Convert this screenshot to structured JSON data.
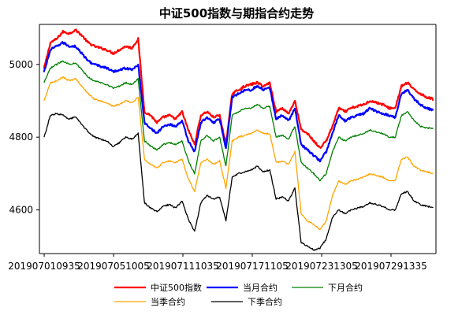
{
  "chart_data": {
    "type": "line",
    "title": "中证500指数与期指合约走势",
    "xlabel": "",
    "ylabel": "",
    "ylim": [
      4480,
      5110
    ],
    "grid": false,
    "legend_position": "bottom",
    "x_tick_labels": [
      "201907010935",
      "201907051005",
      "201907111035",
      "201907171105",
      "201907231305",
      "201907291335"
    ],
    "y_ticks": [
      4600,
      4800,
      5000
    ],
    "series": [
      {
        "name": "中证500指数",
        "color": "#ff0000",
        "values": [
          4990,
          5060,
          5070,
          5090,
          5085,
          5095,
          5080,
          5060,
          5050,
          5045,
          5040,
          5030,
          5040,
          5050,
          5045,
          5070,
          4870,
          4860,
          4840,
          4855,
          4860,
          4850,
          4870,
          4820,
          4780,
          4860,
          4870,
          4855,
          4860,
          4780,
          4920,
          4930,
          4940,
          4945,
          4950,
          4940,
          4950,
          4870,
          4880,
          4865,
          4900,
          4820,
          4810,
          4790,
          4770,
          4790,
          4830,
          4880,
          4870,
          4880,
          4885,
          4890,
          4900,
          4895,
          4890,
          4880,
          4880,
          4940,
          4950,
          4930,
          4920,
          4910,
          4905
        ]
      },
      {
        "name": "当月合约",
        "color": "#0000ff",
        "values": [
          4980,
          5040,
          5050,
          5060,
          5050,
          5050,
          5030,
          5010,
          5000,
          4995,
          4990,
          4980,
          4985,
          4990,
          4985,
          5000,
          4840,
          4825,
          4810,
          4830,
          4835,
          4830,
          4845,
          4790,
          4760,
          4840,
          4855,
          4840,
          4850,
          4770,
          4910,
          4920,
          4930,
          4930,
          4940,
          4930,
          4935,
          4850,
          4860,
          4845,
          4880,
          4780,
          4765,
          4750,
          4735,
          4760,
          4810,
          4860,
          4845,
          4855,
          4860,
          4865,
          4880,
          4870,
          4865,
          4860,
          4855,
          4920,
          4930,
          4905,
          4890,
          4880,
          4875
        ]
      },
      {
        "name": "下月合约",
        "color": "#008000",
        "values": [
          4950,
          4990,
          5000,
          5010,
          5000,
          5005,
          4985,
          4965,
          4955,
          4950,
          4945,
          4935,
          4940,
          4950,
          4945,
          4960,
          4790,
          4775,
          4765,
          4780,
          4785,
          4780,
          4790,
          4735,
          4700,
          4790,
          4805,
          4790,
          4800,
          4720,
          4860,
          4870,
          4880,
          4880,
          4890,
          4880,
          4885,
          4800,
          4805,
          4795,
          4830,
          4730,
          4715,
          4700,
          4680,
          4700,
          4760,
          4800,
          4790,
          4800,
          4805,
          4810,
          4820,
          4815,
          4810,
          4800,
          4800,
          4860,
          4870,
          4845,
          4830,
          4825,
          4825
        ]
      },
      {
        "name": "当季合约",
        "color": "#ffa500",
        "values": [
          4900,
          4950,
          4955,
          4965,
          4955,
          4960,
          4940,
          4920,
          4905,
          4900,
          4895,
          4885,
          4890,
          4900,
          4895,
          4910,
          4740,
          4725,
          4715,
          4730,
          4735,
          4730,
          4740,
          4685,
          4650,
          4730,
          4740,
          4725,
          4735,
          4660,
          4790,
          4800,
          4805,
          4810,
          4820,
          4810,
          4810,
          4730,
          4735,
          4725,
          4760,
          4590,
          4570,
          4560,
          4545,
          4570,
          4640,
          4680,
          4670,
          4680,
          4685,
          4690,
          4700,
          4695,
          4690,
          4680,
          4680,
          4740,
          4745,
          4720,
          4710,
          4705,
          4700
        ]
      },
      {
        "name": "下季合约",
        "color": "#000000",
        "values": [
          4800,
          4860,
          4865,
          4860,
          4850,
          4855,
          4835,
          4815,
          4800,
          4795,
          4790,
          4775,
          4785,
          4800,
          4795,
          4810,
          4620,
          4605,
          4595,
          4610,
          4615,
          4605,
          4625,
          4575,
          4540,
          4620,
          4640,
          4630,
          4635,
          4570,
          4690,
          4700,
          4705,
          4710,
          4720,
          4705,
          4710,
          4630,
          4635,
          4625,
          4660,
          4510,
          4500,
          4490,
          4495,
          4520,
          4580,
          4600,
          4590,
          4600,
          4605,
          4610,
          4620,
          4615,
          4610,
          4600,
          4600,
          4645,
          4650,
          4625,
          4615,
          4610,
          4608
        ]
      }
    ]
  }
}
